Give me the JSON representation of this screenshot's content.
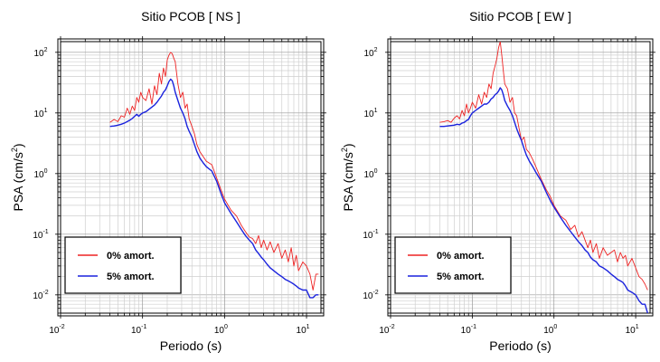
{
  "chart_data": [
    {
      "type": "line",
      "title": "Sitio PCOB [ NS ]",
      "xlabel": "Periodo (s)",
      "ylabel_main": "PSA (cm/s",
      "ylabel_sup": "2",
      "ylabel_close": ")",
      "x_scale": "log",
      "y_scale": "log",
      "xlim": [
        0.01,
        15
      ],
      "ylim": [
        0.005,
        150
      ],
      "x_ticks": [
        {
          "value": 0.01,
          "base": "10",
          "exp": "-2"
        },
        {
          "value": 0.1,
          "base": "10",
          "exp": "-1"
        },
        {
          "value": 1,
          "base": "10",
          "exp": "0"
        },
        {
          "value": 10,
          "base": "10",
          "exp": "1"
        }
      ],
      "y_ticks": [
        {
          "value": 0.01,
          "base": "10",
          "exp": "-2"
        },
        {
          "value": 0.1,
          "base": "10",
          "exp": "-1"
        },
        {
          "value": 1,
          "base": "10",
          "exp": "0"
        },
        {
          "value": 10,
          "base": "10",
          "exp": "1"
        },
        {
          "value": 100,
          "base": "10",
          "exp": "2"
        }
      ],
      "grid": true,
      "legend_position": "bottom-left",
      "series": [
        {
          "name": "0% amort.",
          "color": "#ee2222",
          "x": [
            0.04,
            0.045,
            0.05,
            0.055,
            0.06,
            0.065,
            0.07,
            0.075,
            0.08,
            0.085,
            0.09,
            0.095,
            0.1,
            0.11,
            0.12,
            0.13,
            0.14,
            0.15,
            0.16,
            0.17,
            0.18,
            0.19,
            0.2,
            0.21,
            0.22,
            0.23,
            0.24,
            0.25,
            0.27,
            0.29,
            0.31,
            0.33,
            0.35,
            0.37,
            0.4,
            0.43,
            0.46,
            0.5,
            0.55,
            0.6,
            0.7,
            0.8,
            0.9,
            1.0,
            1.2,
            1.4,
            1.6,
            1.8,
            2.0,
            2.2,
            2.4,
            2.6,
            2.8,
            3.0,
            3.3,
            3.6,
            4.0,
            4.5,
            5.0,
            5.5,
            6.0,
            6.5,
            7.0,
            7.5,
            8.0,
            9.0,
            10.0,
            11.0,
            12.0,
            13.0,
            14.0
          ],
          "y": [
            7,
            7.8,
            7.2,
            9,
            8.5,
            12,
            9.5,
            13,
            11,
            18,
            15,
            22,
            18,
            16,
            25,
            14,
            28,
            20,
            45,
            30,
            55,
            40,
            75,
            90,
            100,
            95,
            80,
            70,
            30,
            18,
            22,
            12,
            14,
            8,
            6,
            4.5,
            3,
            2.3,
            1.9,
            1.6,
            1.4,
            0.85,
            0.55,
            0.38,
            0.25,
            0.2,
            0.14,
            0.11,
            0.09,
            0.085,
            0.07,
            0.095,
            0.06,
            0.08,
            0.055,
            0.075,
            0.05,
            0.07,
            0.04,
            0.055,
            0.035,
            0.06,
            0.03,
            0.045,
            0.025,
            0.035,
            0.03,
            0.022,
            0.012,
            0.022,
            0.022
          ]
        },
        {
          "name": "5% amort.",
          "color": "#1a22dd",
          "x": [
            0.04,
            0.045,
            0.05,
            0.055,
            0.06,
            0.065,
            0.07,
            0.075,
            0.08,
            0.085,
            0.09,
            0.095,
            0.1,
            0.11,
            0.12,
            0.13,
            0.14,
            0.15,
            0.16,
            0.17,
            0.18,
            0.19,
            0.2,
            0.21,
            0.22,
            0.23,
            0.24,
            0.25,
            0.27,
            0.29,
            0.31,
            0.33,
            0.35,
            0.37,
            0.4,
            0.43,
            0.46,
            0.5,
            0.55,
            0.6,
            0.7,
            0.8,
            0.9,
            1.0,
            1.2,
            1.4,
            1.6,
            1.8,
            2.0,
            2.2,
            2.4,
            2.6,
            2.8,
            3.0,
            3.3,
            3.6,
            4.0,
            4.5,
            5.0,
            5.5,
            6.0,
            6.5,
            7.0,
            7.5,
            8.0,
            9.0,
            10.0,
            11.0,
            12.0,
            13.0,
            14.0
          ],
          "y": [
            6,
            6.1,
            6.3,
            6.5,
            6.8,
            7.2,
            7.6,
            8.1,
            8.8,
            9.5,
            8.8,
            9.5,
            10,
            10.5,
            11.5,
            12.5,
            13.5,
            15,
            17,
            19,
            22,
            24,
            28,
            33,
            36,
            34,
            28,
            22,
            16,
            12,
            10,
            8,
            6,
            5,
            4,
            3,
            2.3,
            1.8,
            1.5,
            1.3,
            1.1,
            0.75,
            0.48,
            0.33,
            0.22,
            0.16,
            0.12,
            0.095,
            0.08,
            0.07,
            0.055,
            0.048,
            0.042,
            0.038,
            0.032,
            0.028,
            0.025,
            0.022,
            0.02,
            0.018,
            0.017,
            0.016,
            0.015,
            0.014,
            0.013,
            0.012,
            0.012,
            0.009,
            0.009,
            0.01,
            0.01
          ]
        }
      ]
    },
    {
      "type": "line",
      "title": "Sitio PCOB [ EW ]",
      "xlabel": "Periodo (s)",
      "ylabel_main": "PSA (cm/s",
      "ylabel_sup": "2",
      "ylabel_close": ")",
      "x_scale": "log",
      "y_scale": "log",
      "xlim": [
        0.01,
        15
      ],
      "ylim": [
        0.005,
        150
      ],
      "x_ticks": [
        {
          "value": 0.01,
          "base": "10",
          "exp": "-2"
        },
        {
          "value": 0.1,
          "base": "10",
          "exp": "-1"
        },
        {
          "value": 1,
          "base": "10",
          "exp": "0"
        },
        {
          "value": 10,
          "base": "10",
          "exp": "1"
        }
      ],
      "y_ticks": [
        {
          "value": 0.01,
          "base": "10",
          "exp": "-2"
        },
        {
          "value": 0.1,
          "base": "10",
          "exp": "-1"
        },
        {
          "value": 1,
          "base": "10",
          "exp": "0"
        },
        {
          "value": 10,
          "base": "10",
          "exp": "1"
        },
        {
          "value": 100,
          "base": "10",
          "exp": "2"
        }
      ],
      "grid": true,
      "legend_position": "bottom-left",
      "series": [
        {
          "name": "0% amort.",
          "color": "#ee2222",
          "x": [
            0.04,
            0.045,
            0.05,
            0.055,
            0.06,
            0.065,
            0.07,
            0.075,
            0.08,
            0.085,
            0.09,
            0.095,
            0.1,
            0.11,
            0.12,
            0.13,
            0.14,
            0.15,
            0.16,
            0.17,
            0.18,
            0.19,
            0.2,
            0.21,
            0.22,
            0.23,
            0.24,
            0.25,
            0.27,
            0.29,
            0.31,
            0.33,
            0.35,
            0.37,
            0.4,
            0.43,
            0.46,
            0.5,
            0.55,
            0.6,
            0.7,
            0.8,
            0.9,
            1.0,
            1.2,
            1.4,
            1.6,
            1.8,
            2.0,
            2.2,
            2.4,
            2.6,
            2.8,
            3.0,
            3.3,
            3.6,
            4.0,
            4.5,
            5.0,
            5.5,
            6.0,
            6.5,
            7.0,
            7.5,
            8.0,
            9.0,
            10.0,
            11.0,
            12.0,
            13.0,
            14.0
          ],
          "y": [
            7,
            7.2,
            7.5,
            7,
            8.2,
            9,
            8,
            11,
            9,
            14,
            10,
            12,
            15,
            12,
            20,
            14,
            22,
            18,
            30,
            25,
            45,
            60,
            80,
            120,
            150,
            90,
            50,
            30,
            25,
            15,
            18,
            10,
            9,
            6,
            3.5,
            4,
            2.5,
            2.2,
            1.7,
            1.3,
            0.8,
            0.55,
            0.42,
            0.3,
            0.2,
            0.17,
            0.12,
            0.14,
            0.09,
            0.11,
            0.08,
            0.06,
            0.08,
            0.05,
            0.07,
            0.04,
            0.06,
            0.045,
            0.05,
            0.055,
            0.035,
            0.05,
            0.04,
            0.045,
            0.03,
            0.04,
            0.028,
            0.02,
            0.018,
            0.015,
            0.012
          ]
        },
        {
          "name": "5% amort.",
          "color": "#1a22dd",
          "x": [
            0.04,
            0.045,
            0.05,
            0.055,
            0.06,
            0.065,
            0.07,
            0.075,
            0.08,
            0.085,
            0.09,
            0.095,
            0.1,
            0.11,
            0.12,
            0.13,
            0.14,
            0.15,
            0.16,
            0.17,
            0.18,
            0.19,
            0.2,
            0.21,
            0.22,
            0.23,
            0.24,
            0.25,
            0.27,
            0.29,
            0.31,
            0.33,
            0.35,
            0.37,
            0.4,
            0.43,
            0.46,
            0.5,
            0.55,
            0.6,
            0.7,
            0.8,
            0.9,
            1.0,
            1.2,
            1.4,
            1.6,
            1.8,
            2.0,
            2.2,
            2.4,
            2.6,
            2.8,
            3.0,
            3.3,
            3.6,
            4.0,
            4.5,
            5.0,
            5.5,
            6.0,
            6.5,
            7.0,
            7.5,
            8.0,
            9.0,
            10.0,
            11.0,
            12.0,
            13.0,
            14.0
          ],
          "y": [
            6,
            6,
            6.1,
            6.2,
            6.3,
            6.5,
            6.4,
            6.8,
            7,
            7.5,
            7.8,
            9,
            10,
            11,
            12,
            13,
            14,
            14,
            15,
            17,
            18,
            20,
            21,
            23,
            26,
            24,
            20,
            16,
            13,
            11,
            9,
            7,
            5.5,
            4.5,
            3.5,
            2.6,
            2,
            1.6,
            1.3,
            1.05,
            0.75,
            0.5,
            0.36,
            0.28,
            0.19,
            0.14,
            0.11,
            0.09,
            0.075,
            0.065,
            0.055,
            0.05,
            0.042,
            0.038,
            0.035,
            0.03,
            0.028,
            0.025,
            0.022,
            0.02,
            0.018,
            0.017,
            0.016,
            0.014,
            0.012,
            0.011,
            0.01,
            0.008,
            0.007,
            0.007,
            0.005
          ]
        }
      ]
    }
  ]
}
